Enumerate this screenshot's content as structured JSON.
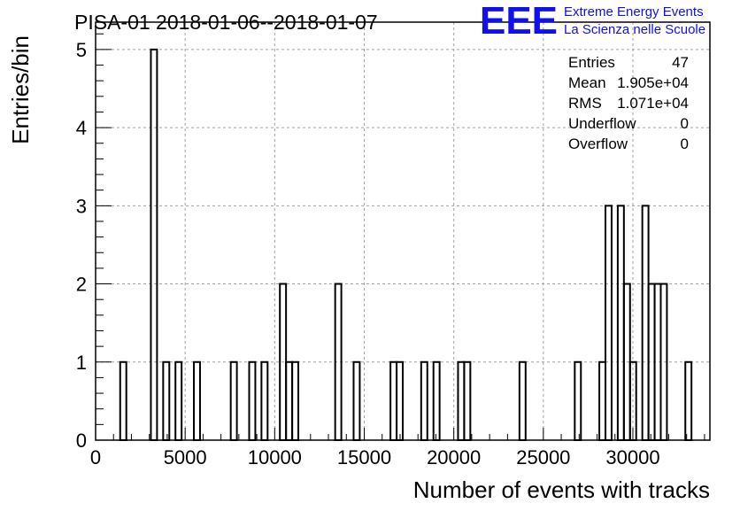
{
  "chart_data": {
    "type": "bar",
    "title": "PISA-01 2018-01-06--2018-01-07",
    "xlabel": "Number of events with tracks",
    "ylabel": "Entries/bin",
    "xlim": [
      0,
      34300
    ],
    "ylim": [
      0,
      5.35
    ],
    "grid": true,
    "x_ticks": [
      0,
      5000,
      10000,
      15000,
      20000,
      25000,
      30000
    ],
    "x_tick_labels": [
      "0",
      "5000",
      "10000",
      "15000",
      "20000",
      "25000",
      "30000"
    ],
    "y_ticks": [
      0,
      1,
      2,
      3,
      4,
      5
    ],
    "y_tick_labels": [
      "0",
      "1",
      "2",
      "3",
      "4",
      "5"
    ],
    "bin_width": 343,
    "bins": [
      {
        "x": 1372,
        "y": 1
      },
      {
        "x": 3087,
        "y": 5
      },
      {
        "x": 3773,
        "y": 1
      },
      {
        "x": 4459,
        "y": 1
      },
      {
        "x": 5488,
        "y": 1
      },
      {
        "x": 7546,
        "y": 1
      },
      {
        "x": 8575,
        "y": 1
      },
      {
        "x": 9261,
        "y": 1
      },
      {
        "x": 10290,
        "y": 2
      },
      {
        "x": 10633,
        "y": 1
      },
      {
        "x": 10976,
        "y": 1
      },
      {
        "x": 13377,
        "y": 2
      },
      {
        "x": 14406,
        "y": 1
      },
      {
        "x": 16464,
        "y": 1
      },
      {
        "x": 16807,
        "y": 1
      },
      {
        "x": 18179,
        "y": 1
      },
      {
        "x": 18865,
        "y": 1
      },
      {
        "x": 20237,
        "y": 1
      },
      {
        "x": 20580,
        "y": 1
      },
      {
        "x": 23667,
        "y": 1
      },
      {
        "x": 26754,
        "y": 1
      },
      {
        "x": 28126,
        "y": 1
      },
      {
        "x": 28469,
        "y": 3
      },
      {
        "x": 29155,
        "y": 3
      },
      {
        "x": 29498,
        "y": 2
      },
      {
        "x": 29841,
        "y": 1
      },
      {
        "x": 30527,
        "y": 3
      },
      {
        "x": 30870,
        "y": 2
      },
      {
        "x": 31213,
        "y": 2
      },
      {
        "x": 31556,
        "y": 2
      },
      {
        "x": 32928,
        "y": 1
      }
    ],
    "stats_box": [
      {
        "label": "Entries",
        "value": "47"
      },
      {
        "label": "Mean",
        "value": "1.905e+04"
      },
      {
        "label": "RMS",
        "value": "1.071e+04"
      },
      {
        "label": "Underflow",
        "value": "0"
      },
      {
        "label": "Overflow",
        "value": "0"
      }
    ],
    "line_color": "#000000",
    "grid_color": "#a0a0a0"
  },
  "logo": {
    "text": "EEE",
    "line1": "Extreme Energy Events",
    "line2": "La Scienza nelle Scuole",
    "color": "#1010ee"
  }
}
